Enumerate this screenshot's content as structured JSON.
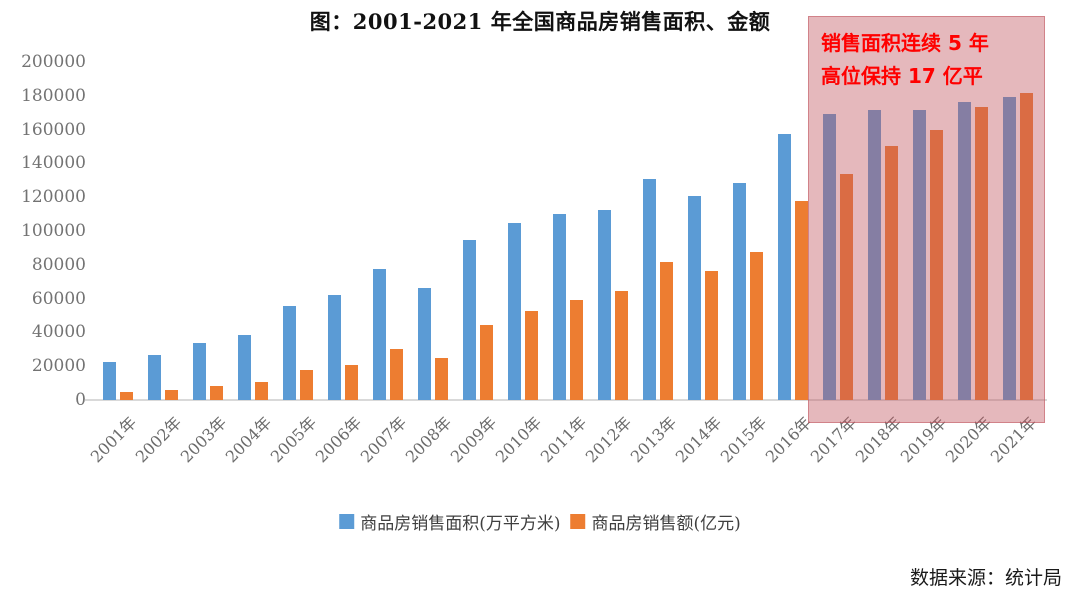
{
  "title": "图：2001-2021 年全国商品房销售面积、金额",
  "source": "数据来源：统计局",
  "annotation": {
    "line1": "销售面积连续 5 年",
    "line2": "高位保持 17 亿平"
  },
  "colors": {
    "series_area": "#5B9BD5",
    "series_amount": "#ED7D31",
    "highlight_fill": "rgba(193,86,95,0.42)",
    "highlight_border": "rgba(193,86,95,0.55)",
    "annotation_text": "#FF0000",
    "axis_line": "#D9D9D9",
    "tick_text": "#737373"
  },
  "chart_data": {
    "type": "bar",
    "title": "图：2001-2021 年全国商品房销售面积、金额",
    "categories": [
      "2001年",
      "2002年",
      "2003年",
      "2004年",
      "2005年",
      "2006年",
      "2007年",
      "2008年",
      "2009年",
      "2010年",
      "2011年",
      "2012年",
      "2013年",
      "2014年",
      "2015年",
      "2016年",
      "2017年",
      "2018年",
      "2019年",
      "2020年",
      "2021年"
    ],
    "series": [
      {
        "name": "商品房销售面积(万平方米)",
        "color": "#5B9BD5",
        "values": [
          22400,
          26800,
          33700,
          38200,
          55500,
          61900,
          77400,
          66000,
          94800,
          104800,
          110000,
          112300,
          130600,
          120600,
          128500,
          157300,
          169400,
          171700,
          171600,
          176100,
          179400
        ]
      },
      {
        "name": "商品房销售额(亿元)",
        "color": "#ED7D31",
        "values": [
          4900,
          6000,
          8000,
          10400,
          17600,
          20800,
          29900,
          25100,
          44400,
          52700,
          59100,
          64500,
          81400,
          76300,
          87300,
          117600,
          133700,
          150000,
          159700,
          173600,
          181900
        ]
      }
    ],
    "ylim": [
      0,
      200000
    ],
    "ytick_step": 20000,
    "ytick_labels": [
      "0",
      "20000",
      "40000",
      "60000",
      "80000",
      "100000",
      "120000",
      "140000",
      "160000",
      "180000",
      "200000"
    ],
    "grid": false,
    "legend_position": "bottom-center",
    "highlight_range": {
      "from_index": 16,
      "to_index": 20,
      "label": "销售面积连续 5 年高位保持 17 亿平"
    }
  }
}
